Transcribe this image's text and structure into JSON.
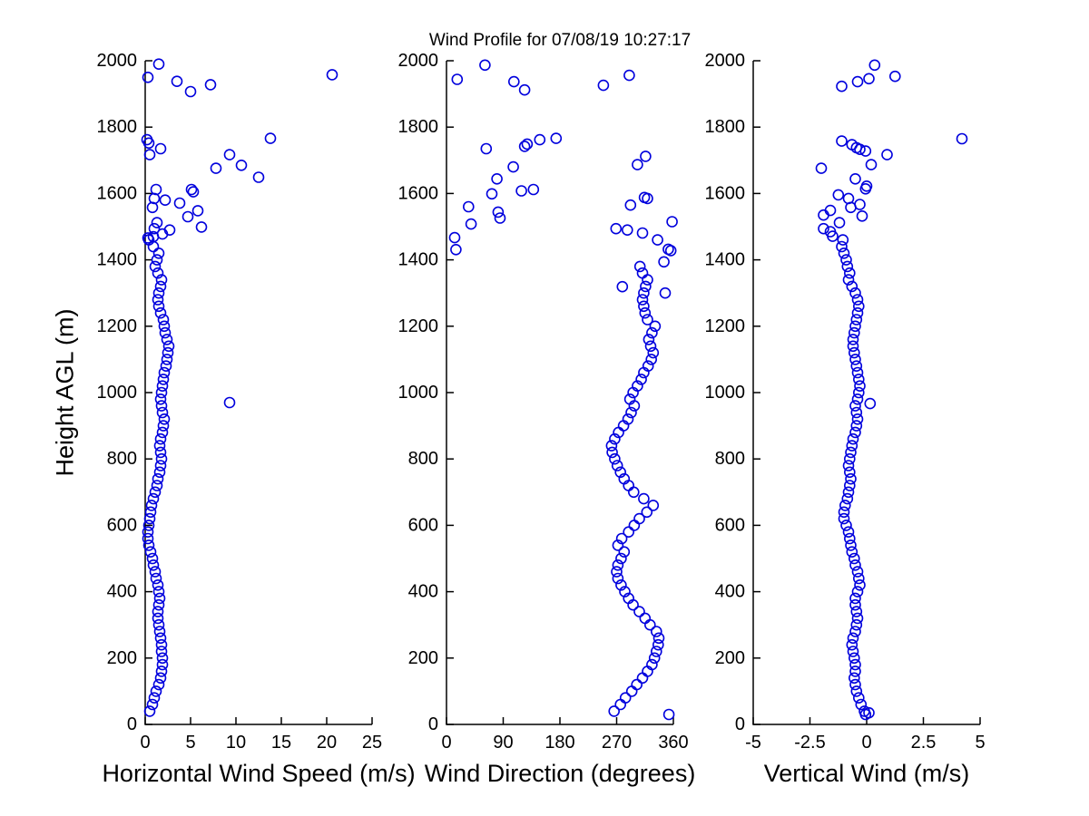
{
  "title": "Wind Profile for  07/08/19 10:27:17",
  "marker": {
    "shape": "open-circle",
    "color": "#0000dd"
  },
  "axes": {
    "ylabel": "Height AGL (m)",
    "ylim": [
      0,
      2000
    ],
    "yticks": [
      0,
      200,
      400,
      600,
      800,
      1000,
      1200,
      1400,
      1600,
      1800,
      2000
    ],
    "grid": false,
    "box": false,
    "tick_direction": "in"
  },
  "chart_data": [
    {
      "type": "scatter",
      "xlabel": "Horizontal Wind Speed (m/s)",
      "xlim": [
        0,
        25
      ],
      "xticks": [
        0,
        5,
        10,
        15,
        20,
        25
      ],
      "ylabel": "Height AGL (m)",
      "ylim": [
        0,
        2000
      ],
      "legend": null,
      "points": [
        [
          0.5,
          40
        ],
        [
          0.8,
          60
        ],
        [
          1.0,
          80
        ],
        [
          1.2,
          100
        ],
        [
          1.5,
          120
        ],
        [
          1.7,
          140
        ],
        [
          1.8,
          160
        ],
        [
          1.9,
          180
        ],
        [
          1.9,
          200
        ],
        [
          1.8,
          220
        ],
        [
          1.8,
          240
        ],
        [
          1.7,
          260
        ],
        [
          1.6,
          280
        ],
        [
          1.5,
          300
        ],
        [
          1.4,
          320
        ],
        [
          1.4,
          340
        ],
        [
          1.5,
          360
        ],
        [
          1.6,
          380
        ],
        [
          1.5,
          400
        ],
        [
          1.4,
          420
        ],
        [
          1.2,
          440
        ],
        [
          1.1,
          460
        ],
        [
          0.9,
          480
        ],
        [
          0.8,
          500
        ],
        [
          0.6,
          520
        ],
        [
          0.4,
          540
        ],
        [
          0.3,
          560
        ],
        [
          0.3,
          580
        ],
        [
          0.4,
          600
        ],
        [
          0.5,
          620
        ],
        [
          0.6,
          640
        ],
        [
          0.7,
          660
        ],
        [
          0.9,
          680
        ],
        [
          1.1,
          700
        ],
        [
          1.3,
          720
        ],
        [
          1.4,
          740
        ],
        [
          1.6,
          760
        ],
        [
          1.7,
          780
        ],
        [
          1.8,
          800
        ],
        [
          1.7,
          820
        ],
        [
          1.6,
          840
        ],
        [
          1.7,
          860
        ],
        [
          1.9,
          880
        ],
        [
          2.0,
          900
        ],
        [
          2.1,
          920
        ],
        [
          1.9,
          940
        ],
        [
          1.8,
          960
        ],
        [
          1.7,
          980
        ],
        [
          1.8,
          1000
        ],
        [
          1.9,
          1020
        ],
        [
          2.0,
          1040
        ],
        [
          2.1,
          1060
        ],
        [
          2.3,
          1080
        ],
        [
          2.4,
          1100
        ],
        [
          2.5,
          1120
        ],
        [
          2.6,
          1140
        ],
        [
          2.4,
          1160
        ],
        [
          2.2,
          1180
        ],
        [
          2.1,
          1200
        ],
        [
          2.0,
          1220
        ],
        [
          1.7,
          1240
        ],
        [
          1.5,
          1260
        ],
        [
          1.4,
          1280
        ],
        [
          1.5,
          1300
        ],
        [
          1.7,
          1320
        ],
        [
          1.8,
          1340
        ],
        [
          1.4,
          1360
        ],
        [
          1.1,
          1380
        ],
        [
          1.3,
          1400
        ],
        [
          1.5,
          1420
        ],
        [
          0.9,
          1440
        ],
        [
          0.4,
          1460
        ],
        [
          9.3,
          970
        ],
        [
          0.3,
          1466
        ],
        [
          0.9,
          1470
        ],
        [
          1.9,
          1478
        ],
        [
          2.7,
          1490
        ],
        [
          1.0,
          1494
        ],
        [
          6.2,
          1499
        ],
        [
          1.3,
          1512
        ],
        [
          4.7,
          1530
        ],
        [
          5.8,
          1548
        ],
        [
          0.8,
          1558
        ],
        [
          3.8,
          1571
        ],
        [
          2.2,
          1580
        ],
        [
          1.0,
          1585
        ],
        [
          5.3,
          1605
        ],
        [
          5.1,
          1612
        ],
        [
          1.2,
          1612
        ],
        [
          12.5,
          1649
        ],
        [
          7.8,
          1676
        ],
        [
          10.6,
          1685
        ],
        [
          9.3,
          1717
        ],
        [
          0.5,
          1717
        ],
        [
          1.7,
          1735
        ],
        [
          0.4,
          1752
        ],
        [
          0.2,
          1762
        ],
        [
          13.8,
          1766
        ],
        [
          5.0,
          1907
        ],
        [
          7.2,
          1928
        ],
        [
          3.5,
          1938
        ],
        [
          0.3,
          1950
        ],
        [
          20.6,
          1958
        ],
        [
          1.5,
          1990
        ]
      ]
    },
    {
      "type": "scatter",
      "xlabel": "Wind Direction (degrees)",
      "xlim": [
        0,
        360
      ],
      "xticks": [
        0,
        90,
        180,
        270,
        360
      ],
      "ylabel": "Height AGL (m)",
      "ylim": [
        0,
        2000
      ],
      "legend": null,
      "points": [
        [
          266,
          40
        ],
        [
          276,
          60
        ],
        [
          284,
          80
        ],
        [
          294,
          100
        ],
        [
          302,
          120
        ],
        [
          311,
          140
        ],
        [
          319,
          160
        ],
        [
          326,
          180
        ],
        [
          330,
          200
        ],
        [
          333,
          220
        ],
        [
          336,
          240
        ],
        [
          337,
          260
        ],
        [
          333,
          280
        ],
        [
          323,
          300
        ],
        [
          315,
          320
        ],
        [
          306,
          340
        ],
        [
          296,
          360
        ],
        [
          289,
          380
        ],
        [
          283,
          400
        ],
        [
          277,
          420
        ],
        [
          272,
          440
        ],
        [
          270,
          460
        ],
        [
          272,
          480
        ],
        [
          277,
          500
        ],
        [
          282,
          520
        ],
        [
          272,
          540
        ],
        [
          278,
          560
        ],
        [
          289,
          580
        ],
        [
          298,
          600
        ],
        [
          306,
          620
        ],
        [
          318,
          640
        ],
        [
          328,
          660
        ],
        [
          313,
          680
        ],
        [
          297,
          700
        ],
        [
          289,
          720
        ],
        [
          282,
          740
        ],
        [
          276,
          760
        ],
        [
          271,
          780
        ],
        [
          267,
          800
        ],
        [
          263,
          820
        ],
        [
          262,
          840
        ],
        [
          267,
          860
        ],
        [
          273,
          880
        ],
        [
          281,
          900
        ],
        [
          288,
          920
        ],
        [
          293,
          940
        ],
        [
          298,
          960
        ],
        [
          291,
          980
        ],
        [
          296,
          1000
        ],
        [
          303,
          1020
        ],
        [
          309,
          1040
        ],
        [
          313,
          1060
        ],
        [
          320,
          1080
        ],
        [
          325,
          1100
        ],
        [
          328,
          1120
        ],
        [
          324,
          1140
        ],
        [
          321,
          1160
        ],
        [
          326,
          1180
        ],
        [
          331,
          1200
        ],
        [
          319,
          1220
        ],
        [
          315,
          1240
        ],
        [
          313,
          1260
        ],
        [
          311,
          1280
        ],
        [
          313,
          1300
        ],
        [
          316,
          1320
        ],
        [
          319,
          1340
        ],
        [
          311,
          1360
        ],
        [
          307,
          1380
        ],
        [
          353,
          30
        ],
        [
          347,
          1300
        ],
        [
          279,
          1319
        ],
        [
          345,
          1394
        ],
        [
          15,
          1431
        ],
        [
          356,
          1428
        ],
        [
          352,
          1432
        ],
        [
          335,
          1460
        ],
        [
          13,
          1467
        ],
        [
          311,
          1481
        ],
        [
          287,
          1490
        ],
        [
          269,
          1494
        ],
        [
          39,
          1508
        ],
        [
          358,
          1515
        ],
        [
          85,
          1526
        ],
        [
          82,
          1544
        ],
        [
          35,
          1560
        ],
        [
          292,
          1565
        ],
        [
          319,
          1585
        ],
        [
          314,
          1588
        ],
        [
          72,
          1599
        ],
        [
          119,
          1608
        ],
        [
          138,
          1612
        ],
        [
          80,
          1644
        ],
        [
          106,
          1680
        ],
        [
          303,
          1687
        ],
        [
          316,
          1712
        ],
        [
          63,
          1735
        ],
        [
          124,
          1742
        ],
        [
          128,
          1749
        ],
        [
          148,
          1762
        ],
        [
          174,
          1766
        ],
        [
          124,
          1912
        ],
        [
          249,
          1926
        ],
        [
          107,
          1937
        ],
        [
          17,
          1944
        ],
        [
          290,
          1956
        ],
        [
          61,
          1987
        ]
      ]
    },
    {
      "type": "scatter",
      "xlabel": "Vertical Wind (m/s)",
      "xlim": [
        -5,
        5
      ],
      "xticks": [
        -5,
        -2.5,
        0,
        2.5,
        5
      ],
      "ylabel": "Height AGL (m)",
      "ylim": [
        0,
        2000
      ],
      "legend": null,
      "points": [
        [
          -0.1,
          40
        ],
        [
          -0.25,
          60
        ],
        [
          -0.35,
          80
        ],
        [
          -0.45,
          100
        ],
        [
          -0.5,
          120
        ],
        [
          -0.55,
          140
        ],
        [
          -0.5,
          160
        ],
        [
          -0.5,
          180
        ],
        [
          -0.55,
          200
        ],
        [
          -0.6,
          220
        ],
        [
          -0.65,
          240
        ],
        [
          -0.6,
          260
        ],
        [
          -0.5,
          280
        ],
        [
          -0.45,
          300
        ],
        [
          -0.4,
          320
        ],
        [
          -0.45,
          340
        ],
        [
          -0.5,
          360
        ],
        [
          -0.5,
          380
        ],
        [
          -0.4,
          400
        ],
        [
          -0.3,
          420
        ],
        [
          -0.35,
          440
        ],
        [
          -0.4,
          460
        ],
        [
          -0.5,
          480
        ],
        [
          -0.55,
          500
        ],
        [
          -0.65,
          520
        ],
        [
          -0.7,
          540
        ],
        [
          -0.75,
          560
        ],
        [
          -0.8,
          580
        ],
        [
          -0.9,
          600
        ],
        [
          -1.0,
          620
        ],
        [
          -1.0,
          640
        ],
        [
          -0.95,
          660
        ],
        [
          -0.85,
          680
        ],
        [
          -0.8,
          700
        ],
        [
          -0.75,
          720
        ],
        [
          -0.7,
          740
        ],
        [
          -0.75,
          760
        ],
        [
          -0.8,
          780
        ],
        [
          -0.75,
          800
        ],
        [
          -0.7,
          820
        ],
        [
          -0.65,
          840
        ],
        [
          -0.6,
          860
        ],
        [
          -0.5,
          880
        ],
        [
          -0.45,
          900
        ],
        [
          -0.4,
          920
        ],
        [
          -0.45,
          940
        ],
        [
          -0.5,
          960
        ],
        [
          -0.4,
          980
        ],
        [
          -0.35,
          1000
        ],
        [
          -0.3,
          1020
        ],
        [
          -0.35,
          1040
        ],
        [
          -0.4,
          1060
        ],
        [
          -0.45,
          1080
        ],
        [
          -0.5,
          1100
        ],
        [
          -0.55,
          1120
        ],
        [
          -0.6,
          1140
        ],
        [
          -0.6,
          1160
        ],
        [
          -0.55,
          1180
        ],
        [
          -0.5,
          1200
        ],
        [
          -0.45,
          1220
        ],
        [
          -0.4,
          1240
        ],
        [
          -0.35,
          1260
        ],
        [
          -0.4,
          1280
        ],
        [
          -0.5,
          1300
        ],
        [
          -0.65,
          1320
        ],
        [
          -0.8,
          1340
        ],
        [
          -0.75,
          1360
        ],
        [
          -0.85,
          1380
        ],
        [
          -0.9,
          1400
        ],
        [
          -1.0,
          1420
        ],
        [
          -1.1,
          1440
        ],
        [
          -1.05,
          1460
        ],
        [
          -0.05,
          30
        ],
        [
          0.1,
          35
        ],
        [
          0.15,
          967
        ],
        [
          -1.5,
          1471
        ],
        [
          -1.6,
          1485
        ],
        [
          -1.9,
          1494
        ],
        [
          -1.2,
          1512
        ],
        [
          -0.2,
          1532
        ],
        [
          -1.9,
          1535
        ],
        [
          -1.6,
          1549
        ],
        [
          -0.7,
          1558
        ],
        [
          -0.3,
          1567
        ],
        [
          -0.8,
          1585
        ],
        [
          -1.25,
          1596
        ],
        [
          -0.05,
          1614
        ],
        [
          0.0,
          1622
        ],
        [
          -0.5,
          1644
        ],
        [
          -2.0,
          1676
        ],
        [
          0.2,
          1687
        ],
        [
          0.9,
          1717
        ],
        [
          -0.05,
          1728
        ],
        [
          -0.3,
          1733
        ],
        [
          -0.45,
          1738
        ],
        [
          -0.65,
          1747
        ],
        [
          -1.1,
          1758
        ],
        [
          4.2,
          1765
        ],
        [
          -1.1,
          1923
        ],
        [
          -0.4,
          1937
        ],
        [
          0.1,
          1946
        ],
        [
          1.25,
          1953
        ],
        [
          0.35,
          1987
        ]
      ]
    }
  ]
}
